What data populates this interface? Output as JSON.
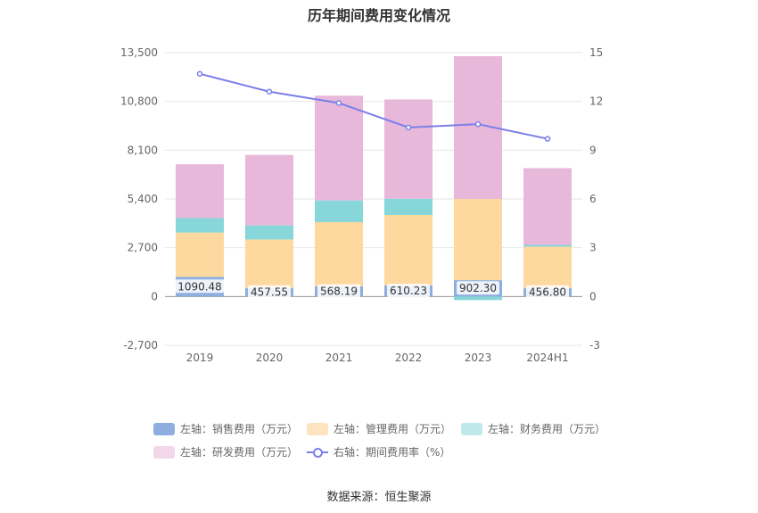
{
  "chart_data": {
    "type": "bar",
    "title": "历年期间费用变化情况",
    "categories": [
      "2019",
      "2020",
      "2021",
      "2022",
      "2023",
      "2024H1"
    ],
    "y_left": {
      "ylim": [
        -2700,
        13500
      ],
      "ticks": [
        "13,500",
        "10,800",
        "8,100",
        "5,400",
        "2,700",
        "0",
        "-2,700"
      ],
      "tick_values": [
        13500,
        10800,
        8100,
        5400,
        2700,
        0,
        -2700
      ]
    },
    "y_right": {
      "ylim": [
        -3,
        15
      ],
      "ticks": [
        "15",
        "12",
        "9",
        "6",
        "3",
        "0",
        "-3"
      ],
      "tick_values": [
        15,
        12,
        9,
        6,
        3,
        0,
        -3
      ]
    },
    "series": [
      {
        "name": "左轴：销售费用（万元）",
        "axis": "left",
        "color": "#8eaee0",
        "values": [
          1090.48,
          457.55,
          568.19,
          610.23,
          902.3,
          456.8
        ],
        "labels": [
          "1090.48",
          "457.55",
          "568.19",
          "610.23",
          "902.30",
          "456.80"
        ]
      },
      {
        "name": "左轴：管理费用（万元）",
        "axis": "left",
        "color": "#fdd99f",
        "values": [
          2450,
          2700,
          3550,
          3900,
          4500,
          2300
        ]
      },
      {
        "name": "左轴：财务费用（万元）",
        "axis": "left",
        "color": "#86d6da",
        "values": [
          800,
          780,
          1200,
          900,
          -200,
          100
        ]
      },
      {
        "name": "左轴：研发费用（万元）",
        "axis": "left",
        "color": "#e8b8da",
        "values": [
          2980,
          3900,
          5800,
          5500,
          7900,
          4250
        ]
      },
      {
        "name": "右轴：期间费用率（%）",
        "axis": "right",
        "type": "line",
        "color": "#7b7fe8",
        "values": [
          13.7,
          12.6,
          11.9,
          10.4,
          10.6,
          9.7
        ]
      }
    ]
  },
  "source": "数据来源：恒生聚源"
}
